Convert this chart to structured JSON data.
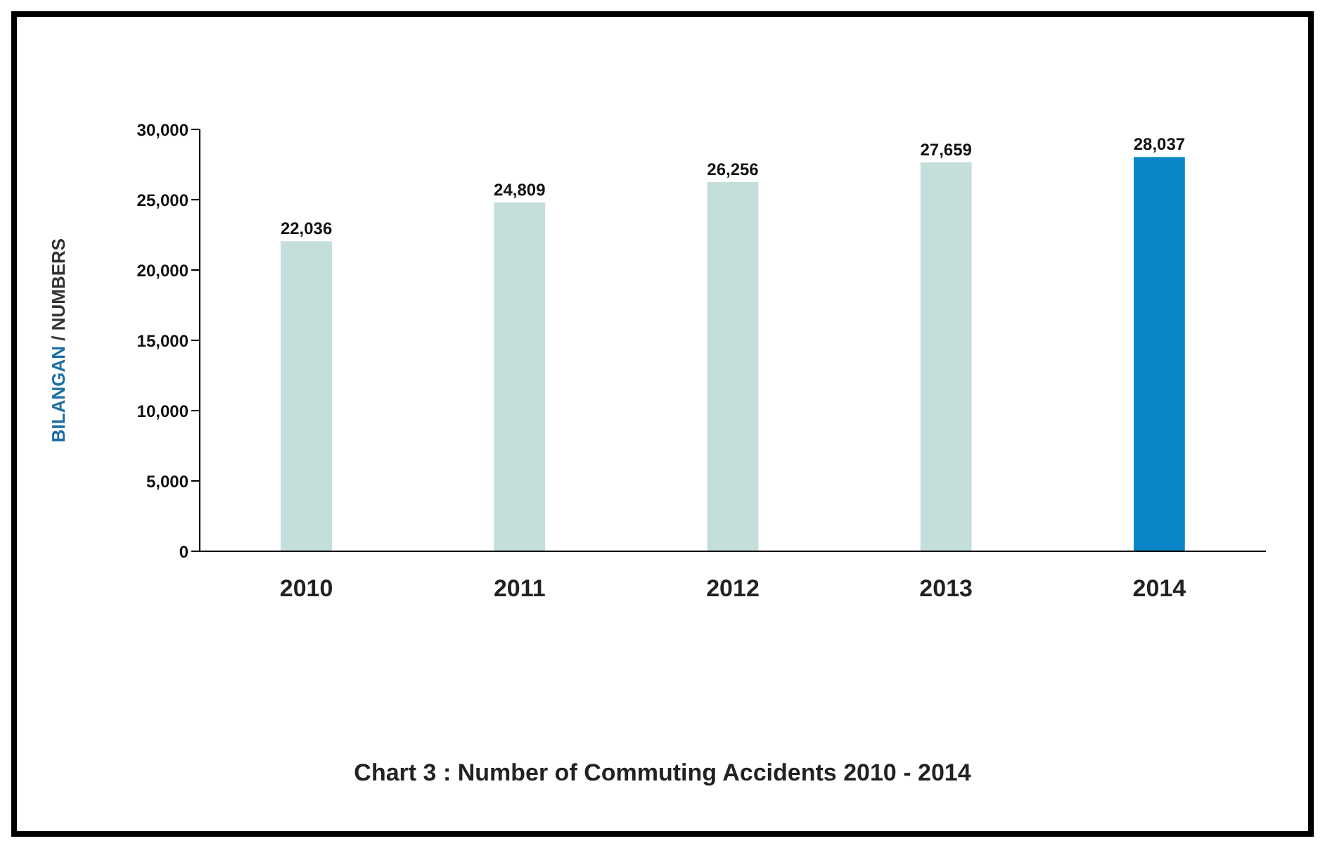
{
  "chart_data": {
    "type": "bar",
    "title": "Chart 3 : Number of Commuting Accidents 2010 - 2014",
    "ylabel": "BILANGAN / NUMBERS",
    "categories": [
      "2010",
      "2011",
      "2012",
      "2013",
      "2014"
    ],
    "values": [
      22036,
      24809,
      26256,
      27659,
      28037
    ],
    "colors": [
      "#c4dedb",
      "#c4dedb",
      "#c4dedb",
      "#c4dedb",
      "#0a86c8"
    ],
    "value_labels": [
      "22,036",
      "24,809",
      "26,256",
      "27,659",
      "28,037"
    ],
    "ylim": [
      0,
      30000
    ],
    "yticks": [
      {
        "value": 0,
        "label": "0"
      },
      {
        "value": 5000,
        "label": "5,000"
      },
      {
        "value": 10000,
        "label": "10,000"
      },
      {
        "value": 15000,
        "label": "15,000"
      },
      {
        "value": 20000,
        "label": "20,000"
      },
      {
        "value": 25000,
        "label": "25,000"
      },
      {
        "value": 30000,
        "label": "30,000"
      }
    ],
    "grid": false,
    "legend": false
  }
}
